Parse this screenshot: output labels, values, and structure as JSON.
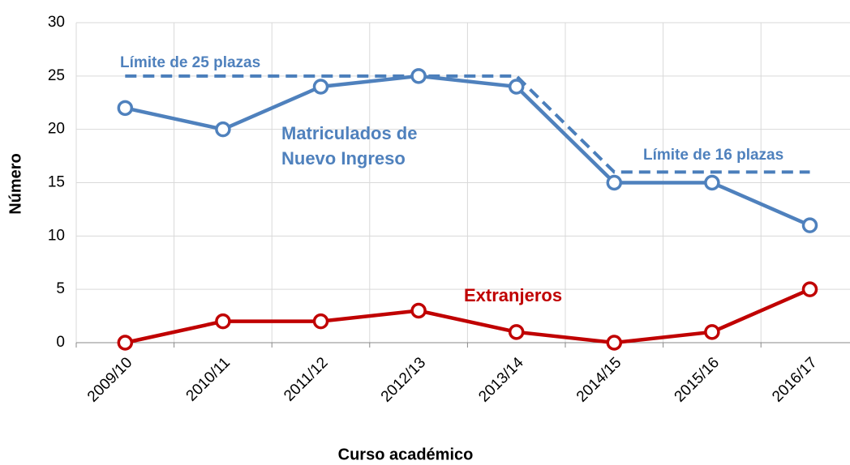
{
  "chart_data": {
    "type": "line",
    "categories": [
      "2009/10",
      "2010/11",
      "2011/12",
      "2012/13",
      "2013/14",
      "2014/15",
      "2015/16",
      "2016/17"
    ],
    "series": [
      {
        "name": "Matriculados de Nuevo Ingreso",
        "color": "#4f81bd",
        "values": [
          22,
          20,
          24,
          25,
          24,
          15,
          15,
          11
        ],
        "markers": true
      },
      {
        "name": "Extranjeros",
        "color": "#c00000",
        "values": [
          0,
          2,
          2,
          3,
          1,
          0,
          1,
          5
        ],
        "markers": true
      },
      {
        "color": "#4a7ebb",
        "values": [
          25,
          25,
          25,
          25,
          25,
          16,
          16,
          16
        ],
        "dashed": true
      }
    ],
    "annotations": [
      "Límite de 25 plazas",
      "Límite de 16 plazas"
    ],
    "xlabel": "Curso académico",
    "ylabel": "Número",
    "ylim": [
      0,
      30
    ],
    "yticks": [
      0,
      5,
      10,
      15,
      20,
      25,
      30
    ],
    "grid": true
  }
}
